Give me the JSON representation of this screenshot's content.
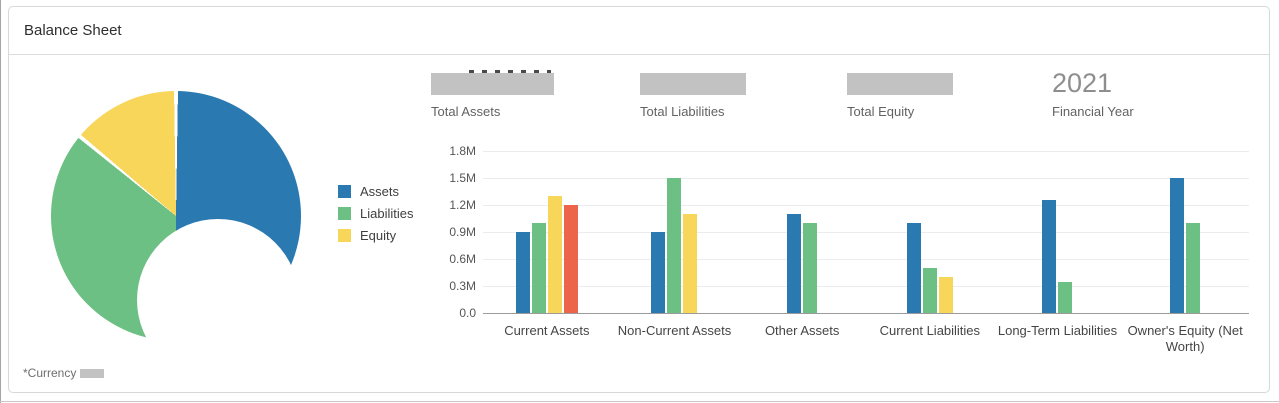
{
  "header": {
    "title": "Balance Sheet"
  },
  "kpis": {
    "items": [
      {
        "label": "Total Assets",
        "redacted": true
      },
      {
        "label": "Total Liabilities",
        "redacted": true
      },
      {
        "label": "Total Equity",
        "redacted": true
      },
      {
        "label": "Financial Year",
        "value": "2021"
      }
    ]
  },
  "legend": {
    "items": [
      {
        "label": "Assets",
        "color": "#2b79b1"
      },
      {
        "label": "Liabilities",
        "color": "#6cc083"
      },
      {
        "label": "Equity",
        "color": "#f8d65a"
      }
    ]
  },
  "chart_data": [
    {
      "type": "bar",
      "title": "",
      "xlabel": "",
      "ylabel": "",
      "unit": "millions",
      "ylim": [
        0,
        1.8
      ],
      "y_ticks": [
        "1.8M",
        "1.5M",
        "1.2M",
        "0.9M",
        "0.6M",
        "0.3M",
        "0.0"
      ],
      "grid": true,
      "legend_position": "left",
      "categories": [
        "Current Assets",
        "Non-Current Assets",
        "Other Assets",
        "Current Liabilities",
        "Long-Term Liabilities",
        "Owner's Equity (Net Worth)"
      ],
      "series": [
        {
          "name": "Assets",
          "color": "#2b79b1",
          "values": [
            0.9,
            0.9,
            1.1,
            1.0,
            1.25,
            1.5
          ]
        },
        {
          "name": "Liabilities",
          "color": "#6cc083",
          "values": [
            1.0,
            1.5,
            1.0,
            0.5,
            0.35,
            1.0
          ]
        },
        {
          "name": "Equity",
          "color": "#f8d65a",
          "values": [
            1.3,
            1.1,
            null,
            0.4,
            null,
            null
          ]
        },
        {
          "name": "",
          "color": "#ec6449",
          "values": [
            1.2,
            null,
            null,
            null,
            null,
            null
          ]
        }
      ]
    },
    {
      "type": "pie",
      "subtype": "donut",
      "slices": [
        {
          "label": "Assets",
          "color": "#2b79b1",
          "pct": 50
        },
        {
          "label": "Liabilities",
          "color": "#6cc083",
          "pct": 36
        },
        {
          "label": "Equity",
          "color": "#f8d65a",
          "pct": 14
        }
      ]
    }
  ],
  "footer": {
    "note": "*Currency",
    "redacted": true
  }
}
